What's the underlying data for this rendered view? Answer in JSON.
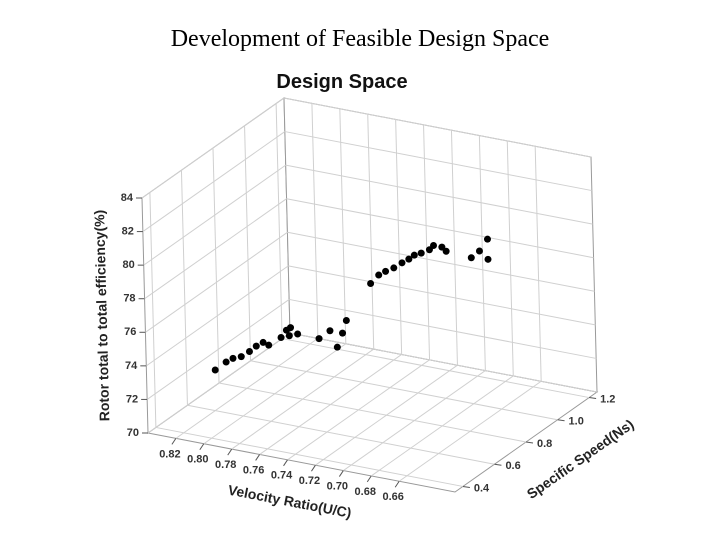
{
  "page_title": "Development of Feasible Design Space",
  "chart_data": {
    "type": "scatter3d",
    "title": "Design Space",
    "xlabel": "Velocity Ratio(U/C)",
    "ylabel": "Specific Speed(Ns)",
    "zlabel": "Rotor total to total efficiency(%)",
    "xlim": [
      0.84,
      0.62
    ],
    "ylim": [
      0.35,
      1.25
    ],
    "zlim": [
      70,
      84
    ],
    "xticks": [
      0.82,
      {
        "value": 0.8,
        "label": "0.80"
      },
      0.78,
      0.76,
      0.74,
      0.72,
      {
        "value": 0.7,
        "label": "0.70"
      },
      0.68,
      0.66
    ],
    "yticks": [
      0.4,
      0.6,
      0.8,
      {
        "value": 1,
        "label": "1.0"
      },
      1.2
    ],
    "zticks": [
      70,
      72,
      74,
      76,
      78,
      80,
      82,
      84
    ],
    "grid": true,
    "color": "#000000",
    "x": [
      0.802,
      0.794,
      0.789,
      0.783,
      0.777,
      0.772,
      0.767,
      0.763,
      0.754,
      0.75,
      0.747,
      0.742,
      0.748,
      0.744,
      0.736,
      0.731,
      0.727,
      0.724,
      0.729,
      0.723,
      0.718,
      0.712,
      0.706,
      0.701,
      0.697,
      0.692,
      0.686,
      0.683,
      0.677,
      0.674,
      0.656,
      0.65,
      0.644,
      0.644
    ],
    "y": [
      0.45,
      0.45,
      0.45,
      0.45,
      0.45,
      0.45,
      0.45,
      0.45,
      0.45,
      0.45,
      0.45,
      0.45,
      0.45,
      0.6,
      0.6,
      0.6,
      0.6,
      0.6,
      0.8,
      0.8,
      0.8,
      0.8,
      0.8,
      0.8,
      0.8,
      0.8,
      0.8,
      0.8,
      0.8,
      0.8,
      0.8,
      0.8,
      0.8,
      0.8
    ],
    "z": [
      73.7,
      74.3,
      74.6,
      74.8,
      75.2,
      75.6,
      75.9,
      75.8,
      76.4,
      76.9,
      77.1,
      76.8,
      76.6,
      75.5,
      76.1,
      75.2,
      76.1,
      76.9,
      77.7,
      78.3,
      78.6,
      78.9,
      79.3,
      79.6,
      79.9,
      80.1,
      80.4,
      80.7,
      80.7,
      80.5,
      80.4,
      80.9,
      81.7,
      80.5
    ]
  }
}
